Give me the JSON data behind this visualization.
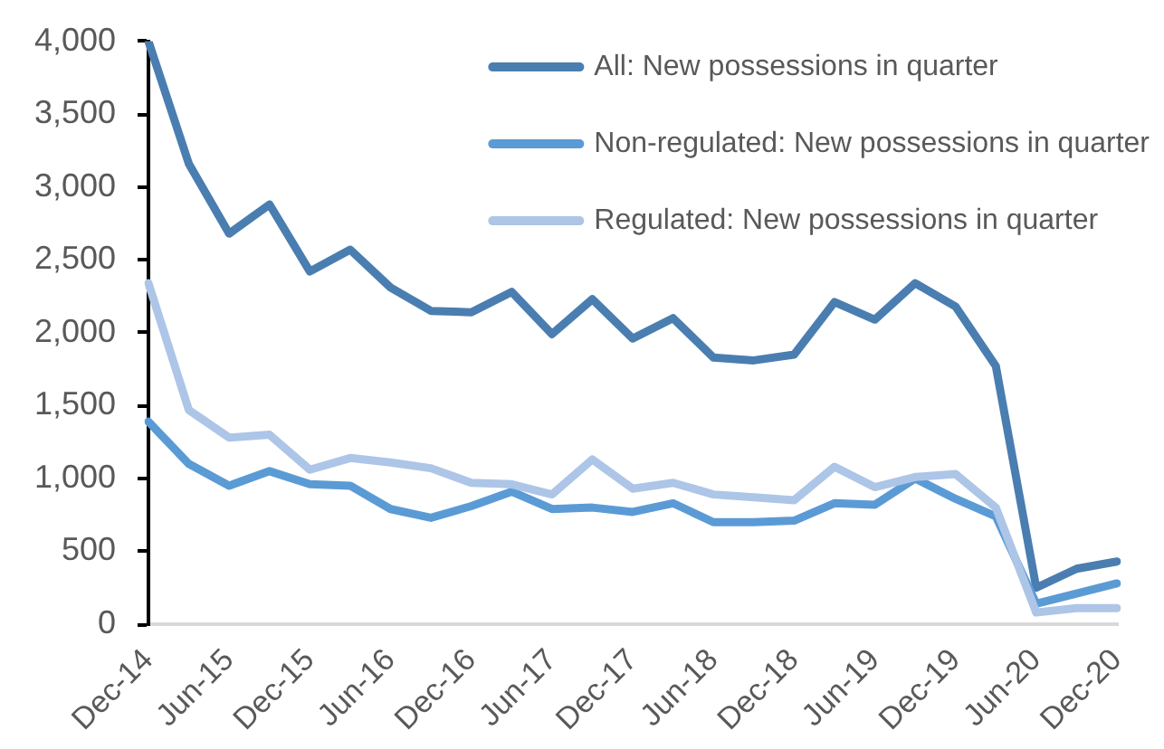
{
  "chart_data": {
    "type": "line",
    "categories": [
      "Dec-14",
      null,
      "Jun-15",
      null,
      "Dec-15",
      null,
      "Jun-16",
      null,
      "Dec-16",
      null,
      "Jun-17",
      null,
      "Dec-17",
      null,
      "Jun-18",
      null,
      "Dec-18",
      null,
      "Jun-19",
      null,
      "Dec-19",
      null,
      "Jun-20",
      null,
      "Dec-20"
    ],
    "series": [
      {
        "name": "All: New possessions in quarter",
        "color": "#4a7eb1",
        "values": [
          4000,
          3160,
          2680,
          2880,
          2420,
          2570,
          2310,
          2150,
          2140,
          2280,
          1990,
          2230,
          1960,
          2100,
          1830,
          1810,
          1850,
          2210,
          2090,
          2340,
          2180,
          1770,
          250,
          380,
          430
        ]
      },
      {
        "name": "Non-regulated: New possessions in quarter",
        "color": "#5b9bd5",
        "values": [
          1390,
          1100,
          950,
          1050,
          960,
          950,
          790,
          730,
          810,
          910,
          790,
          800,
          770,
          830,
          700,
          700,
          710,
          830,
          820,
          1000,
          860,
          740,
          140,
          210,
          280
        ]
      },
      {
        "name": "Regulated: New possessions in quarter",
        "color": "#adc5e7",
        "values": [
          2340,
          1470,
          1280,
          1300,
          1060,
          1140,
          1110,
          1070,
          970,
          960,
          890,
          1130,
          930,
          970,
          890,
          870,
          850,
          1080,
          940,
          1010,
          1030,
          800,
          80,
          110,
          110
        ]
      }
    ],
    "ylim": [
      0,
      4000
    ],
    "yticks": [
      0,
      500,
      {
        "value": 1000,
        "label": "1,000"
      },
      {
        "value": 1500,
        "label": "1,500"
      },
      {
        "value": 2000,
        "label": "2,000"
      },
      {
        "value": 2500,
        "label": "2,500"
      },
      {
        "value": 3000,
        "label": "3,000"
      },
      {
        "value": 3500,
        "label": "3,500"
      },
      {
        "value": 4000,
        "label": "4,000"
      }
    ],
    "legend": "top right"
  }
}
